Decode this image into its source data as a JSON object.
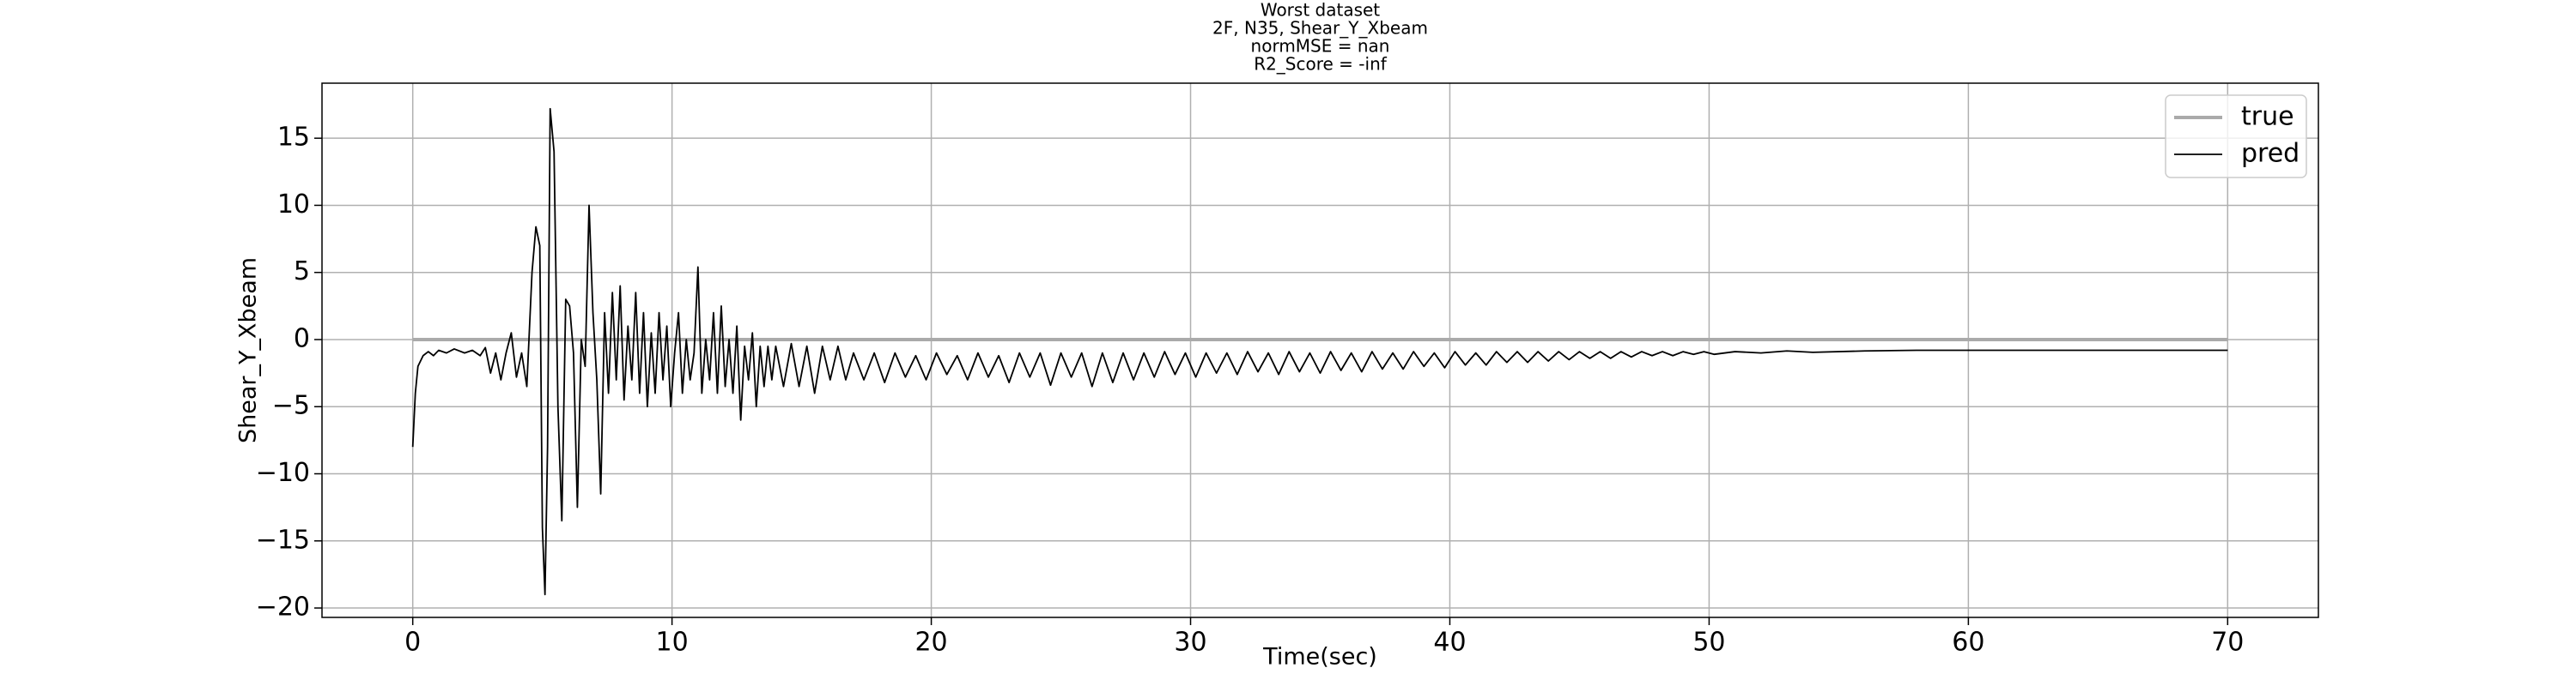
{
  "chart_data": {
    "type": "line",
    "title": [
      "Worst dataset",
      "2F, N35, Shear_Y_Xbeam",
      "normMSE = nan",
      "R2_Score = -inf"
    ],
    "xlabel": "Time(sec)",
    "ylabel": "Shear_Y_Xbeam",
    "xlim": [
      -3.5,
      73.5
    ],
    "ylim": [
      -20.7,
      19.1
    ],
    "xticks": [
      0,
      10,
      20,
      30,
      40,
      50,
      60,
      70
    ],
    "yticks": [
      {
        "value": -20,
        "label": "−20"
      },
      {
        "value": -15,
        "label": "−15"
      },
      {
        "value": -10,
        "label": "−10"
      },
      {
        "value": -5,
        "label": "−5"
      },
      0,
      5,
      10,
      15
    ],
    "grid": true,
    "legend": "upper right",
    "series": [
      {
        "name": "true",
        "color": "#aaaaaa",
        "x": [
          0,
          70
        ],
        "values": [
          0,
          0
        ]
      },
      {
        "name": "pred",
        "color": "#000000",
        "x": [
          0,
          0.1,
          0.2,
          0.4,
          0.6,
          0.8,
          1.0,
          1.3,
          1.6,
          2.0,
          2.3,
          2.6,
          2.8,
          3.0,
          3.2,
          3.4,
          3.6,
          3.8,
          4.0,
          4.2,
          4.4,
          4.6,
          4.75,
          4.9,
          5.0,
          5.1,
          5.2,
          5.3,
          5.45,
          5.6,
          5.75,
          5.9,
          6.05,
          6.2,
          6.35,
          6.5,
          6.65,
          6.8,
          6.95,
          7.1,
          7.25,
          7.4,
          7.55,
          7.7,
          7.85,
          8.0,
          8.15,
          8.3,
          8.45,
          8.6,
          8.75,
          8.9,
          9.05,
          9.2,
          9.35,
          9.5,
          9.65,
          9.8,
          9.95,
          10.1,
          10.25,
          10.4,
          10.55,
          10.7,
          10.85,
          11.0,
          11.15,
          11.3,
          11.45,
          11.6,
          11.75,
          11.9,
          12.05,
          12.2,
          12.35,
          12.5,
          12.65,
          12.8,
          12.95,
          13.1,
          13.25,
          13.4,
          13.55,
          13.7,
          13.85,
          14.0,
          14.3,
          14.6,
          14.9,
          15.2,
          15.5,
          15.8,
          16.1,
          16.4,
          16.7,
          17.0,
          17.4,
          17.8,
          18.2,
          18.6,
          19.0,
          19.4,
          19.8,
          20.2,
          20.6,
          21.0,
          21.4,
          21.8,
          22.2,
          22.6,
          23.0,
          23.4,
          23.8,
          24.2,
          24.6,
          25.0,
          25.4,
          25.8,
          26.2,
          26.6,
          27.0,
          27.4,
          27.8,
          28.2,
          28.6,
          29.0,
          29.4,
          29.8,
          30.2,
          30.6,
          31.0,
          31.4,
          31.8,
          32.2,
          32.6,
          33.0,
          33.4,
          33.8,
          34.2,
          34.6,
          35.0,
          35.4,
          35.8,
          36.2,
          36.6,
          37.0,
          37.4,
          37.8,
          38.2,
          38.6,
          39.0,
          39.4,
          39.8,
          40.2,
          40.6,
          41.0,
          41.4,
          41.8,
          42.2,
          42.6,
          43.0,
          43.4,
          43.8,
          44.2,
          44.6,
          45.0,
          45.4,
          45.8,
          46.2,
          46.6,
          47.0,
          47.4,
          47.8,
          48.2,
          48.6,
          49.0,
          49.4,
          49.8,
          50.2,
          51,
          52,
          53,
          54,
          56,
          58,
          60,
          65,
          70
        ],
        "values": [
          -8,
          -4,
          -2,
          -1.2,
          -0.9,
          -1.2,
          -0.8,
          -1.0,
          -0.7,
          -1.0,
          -0.8,
          -1.2,
          -0.6,
          -2.5,
          -1.0,
          -3.0,
          -1.0,
          0.5,
          -2.8,
          -1.0,
          -3.5,
          5.0,
          8.4,
          7.0,
          -14,
          -19,
          -8,
          17.2,
          14,
          -5,
          -13.5,
          3,
          2.5,
          -1,
          -12.5,
          0,
          -2,
          10,
          2,
          -3,
          -11.5,
          2,
          -4,
          3.5,
          -3,
          4,
          -4.5,
          1,
          -3,
          3.5,
          -4,
          2,
          -5,
          0.5,
          -4,
          2,
          -3,
          1,
          -5,
          -1,
          2,
          -4,
          0,
          -3,
          -1,
          5.4,
          -4,
          0,
          -3,
          2,
          -4,
          2.5,
          -3.5,
          0,
          -4,
          1,
          -6,
          -0.5,
          -3,
          0.5,
          -5,
          -0.5,
          -3.5,
          -0.5,
          -3,
          -0.5,
          -3.5,
          -0.3,
          -3.5,
          -0.5,
          -4,
          -0.5,
          -3,
          -0.5,
          -3,
          -1,
          -3.0,
          -1.0,
          -3.2,
          -1.0,
          -2.8,
          -1.2,
          -3.0,
          -1.0,
          -2.6,
          -1.2,
          -3.0,
          -1.0,
          -2.8,
          -1.2,
          -3.2,
          -1.0,
          -2.8,
          -1.0,
          -3.4,
          -1.0,
          -2.8,
          -1.0,
          -3.5,
          -1.0,
          -3.2,
          -1.0,
          -3.0,
          -1.0,
          -2.8,
          -0.9,
          -2.6,
          -1.0,
          -2.8,
          -1.0,
          -2.5,
          -1.0,
          -2.6,
          -0.9,
          -2.4,
          -1.0,
          -2.6,
          -0.9,
          -2.4,
          -1.0,
          -2.5,
          -0.9,
          -2.3,
          -1.0,
          -2.4,
          -0.9,
          -2.2,
          -1.0,
          -2.2,
          -0.9,
          -2.0,
          -1.0,
          -2.1,
          -0.9,
          -1.9,
          -1.0,
          -1.9,
          -0.9,
          -1.7,
          -0.9,
          -1.7,
          -0.9,
          -1.6,
          -0.9,
          -1.5,
          -0.9,
          -1.4,
          -0.9,
          -1.4,
          -0.9,
          -1.3,
          -0.9,
          -1.2,
          -0.9,
          -1.2,
          -0.9,
          -1.1,
          -0.9,
          -1.1,
          -0.9,
          -1.0,
          -0.85,
          -0.95,
          -0.85,
          -0.8,
          -0.8,
          -0.8,
          -0.8
        ]
      }
    ]
  }
}
